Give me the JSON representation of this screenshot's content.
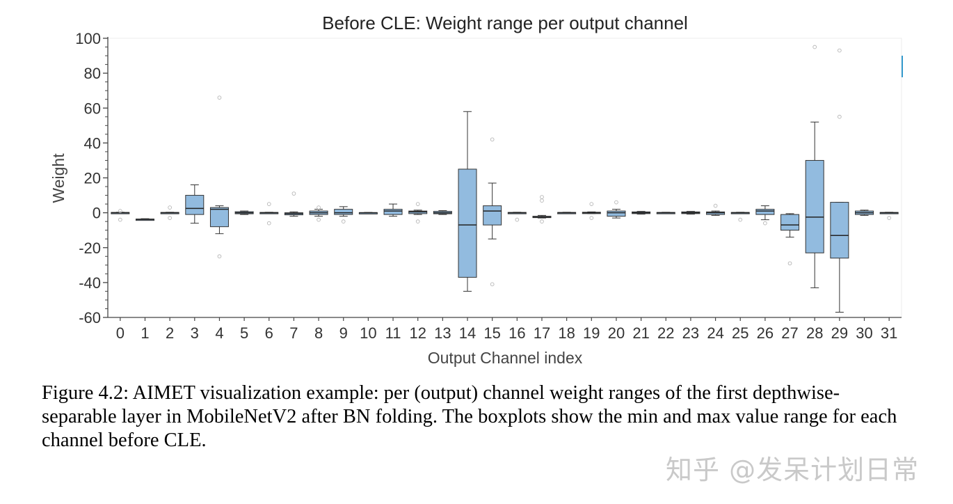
{
  "chart_data": {
    "type": "boxplot",
    "title": "Before CLE: Weight range per output channel",
    "xlabel": "Output Channel index",
    "ylabel": "Weight",
    "ylim": [
      -60,
      100
    ],
    "yticks": [
      100,
      80,
      60,
      40,
      20,
      0,
      -20,
      -40,
      -60
    ],
    "grid": false,
    "box_color": "#92bbdf",
    "edge_color": "#333333",
    "categories": [
      "0",
      "1",
      "2",
      "3",
      "4",
      "5",
      "6",
      "7",
      "8",
      "9",
      "10",
      "11",
      "12",
      "13",
      "14",
      "15",
      "16",
      "17",
      "18",
      "19",
      "20",
      "21",
      "22",
      "23",
      "24",
      "25",
      "26",
      "27",
      "28",
      "29",
      "30",
      "31"
    ],
    "boxes": [
      {
        "channel": "0",
        "min": -0.3,
        "q1": -0.2,
        "median": 0,
        "q3": 0.2,
        "max": 0.3,
        "outliers": [
          1,
          -4
        ]
      },
      {
        "channel": "1",
        "min": -4.2,
        "q1": -4,
        "median": -3.8,
        "q3": -3.6,
        "max": -3.4,
        "outliers": []
      },
      {
        "channel": "2",
        "min": -0.3,
        "q1": -0.2,
        "median": 0,
        "q3": 0.2,
        "max": 0.3,
        "outliers": [
          3,
          -3
        ]
      },
      {
        "channel": "3",
        "min": -6,
        "q1": -1,
        "median": 2.5,
        "q3": 10,
        "max": 16,
        "outliers": []
      },
      {
        "channel": "4",
        "min": -12,
        "q1": -8,
        "median": 2,
        "q3": 3,
        "max": 4,
        "outliers": [
          66,
          -25
        ]
      },
      {
        "channel": "5",
        "min": -1,
        "q1": -0.6,
        "median": 0,
        "q3": 0.6,
        "max": 1,
        "outliers": []
      },
      {
        "channel": "6",
        "min": -0.3,
        "q1": -0.2,
        "median": 0,
        "q3": 0.2,
        "max": 0.3,
        "outliers": [
          5,
          -6
        ]
      },
      {
        "channel": "7",
        "min": -2,
        "q1": -1.2,
        "median": -0.5,
        "q3": 0,
        "max": 0.5,
        "outliers": [
          11
        ]
      },
      {
        "channel": "8",
        "min": -2,
        "q1": -1,
        "median": 0,
        "q3": 1,
        "max": 2,
        "outliers": [
          -4,
          3
        ]
      },
      {
        "channel": "9",
        "min": -2,
        "q1": -1,
        "median": 0,
        "q3": 2,
        "max": 3.5,
        "outliers": [
          -5
        ]
      },
      {
        "channel": "10",
        "min": -0.2,
        "q1": -0.1,
        "median": 0,
        "q3": 0.1,
        "max": 0.2,
        "outliers": []
      },
      {
        "channel": "11",
        "min": -2,
        "q1": -1,
        "median": 1,
        "q3": 2,
        "max": 5,
        "outliers": []
      },
      {
        "channel": "12",
        "min": -1,
        "q1": -0.5,
        "median": 0.5,
        "q3": 1,
        "max": 1.5,
        "outliers": [
          -5,
          5
        ]
      },
      {
        "channel": "13",
        "min": -1,
        "q1": -0.6,
        "median": 0,
        "q3": 0.8,
        "max": 1.2,
        "outliers": []
      },
      {
        "channel": "14",
        "min": -45,
        "q1": -37,
        "median": -7,
        "q3": 25,
        "max": 58,
        "outliers": []
      },
      {
        "channel": "15",
        "min": -15,
        "q1": -7,
        "median": 1,
        "q3": 4,
        "max": 17,
        "outliers": [
          42,
          -41
        ]
      },
      {
        "channel": "16",
        "min": -0.3,
        "q1": -0.2,
        "median": 0,
        "q3": 0.2,
        "max": 0.3,
        "outliers": [
          -4
        ]
      },
      {
        "channel": "17",
        "min": -3,
        "q1": -2.8,
        "median": -2.5,
        "q3": -2,
        "max": -1.5,
        "outliers": [
          9,
          7,
          -5
        ]
      },
      {
        "channel": "18",
        "min": -0.3,
        "q1": -0.2,
        "median": 0,
        "q3": 0.2,
        "max": 0.3,
        "outliers": []
      },
      {
        "channel": "19",
        "min": -0.5,
        "q1": -0.3,
        "median": 0,
        "q3": 0.3,
        "max": 0.5,
        "outliers": [
          5,
          -3
        ]
      },
      {
        "channel": "20",
        "min": -3,
        "q1": -2,
        "median": 0,
        "q3": 1,
        "max": 2,
        "outliers": [
          6
        ]
      },
      {
        "channel": "21",
        "min": -0.8,
        "q1": -0.5,
        "median": 0,
        "q3": 0.5,
        "max": 0.8,
        "outliers": []
      },
      {
        "channel": "22",
        "min": -0.3,
        "q1": -0.2,
        "median": 0,
        "q3": 0.2,
        "max": 0.3,
        "outliers": []
      },
      {
        "channel": "23",
        "min": -0.8,
        "q1": -0.5,
        "median": 0,
        "q3": 0.5,
        "max": 0.8,
        "outliers": []
      },
      {
        "channel": "24",
        "min": -1.5,
        "q1": -1,
        "median": 0,
        "q3": 0.5,
        "max": 1,
        "outliers": [
          4
        ]
      },
      {
        "channel": "25",
        "min": -0.3,
        "q1": -0.2,
        "median": 0,
        "q3": 0.2,
        "max": 0.3,
        "outliers": [
          -4
        ]
      },
      {
        "channel": "26",
        "min": -4,
        "q1": -1,
        "median": 1,
        "q3": 2,
        "max": 4,
        "outliers": [
          -6
        ]
      },
      {
        "channel": "27",
        "min": -14,
        "q1": -10,
        "median": -7,
        "q3": -1,
        "max": -0.5,
        "outliers": [
          -29
        ]
      },
      {
        "channel": "28",
        "min": -43,
        "q1": -23,
        "median": -2.5,
        "q3": 30,
        "max": 52,
        "outliers": [
          95
        ]
      },
      {
        "channel": "29",
        "min": -57,
        "q1": -26,
        "median": -13,
        "q3": 6,
        "max": 6,
        "outliers": [
          93,
          55
        ]
      },
      {
        "channel": "30",
        "min": -1.5,
        "q1": -1,
        "median": 0,
        "q3": 1,
        "max": 1.5,
        "outliers": []
      },
      {
        "channel": "31",
        "min": -0.3,
        "q1": -0.2,
        "median": 0,
        "q3": 0.2,
        "max": 0.3,
        "outliers": [
          -3
        ]
      }
    ]
  },
  "caption": "Figure 4.2: AIMET visualization example: per (output) channel weight ranges of the first depthwise-separable layer in MobileNetV2 after BN folding. The boxplots show the min and max value range for each channel before CLE.",
  "watermark": "知乎 @发呆计划日常"
}
